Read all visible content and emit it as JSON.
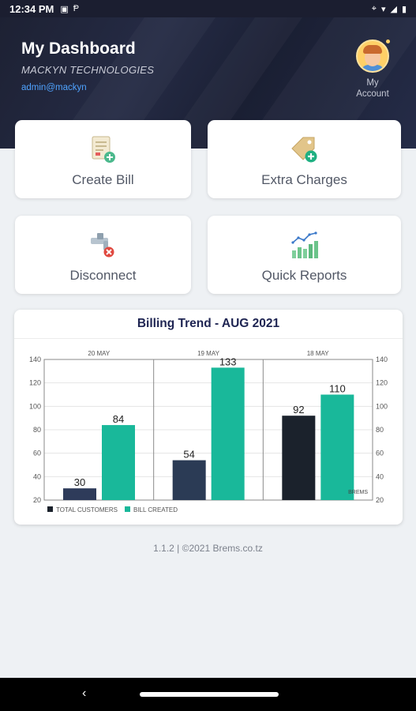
{
  "status": {
    "time": "12:34 PM"
  },
  "header": {
    "title": "My Dashboard",
    "company": "MACKYN TECHNOLOGIES",
    "email": "admin@mackyn",
    "account_label_1": "My",
    "account_label_2": "Account"
  },
  "tiles": {
    "create_bill": "Create Bill",
    "extra_charges": "Extra Charges",
    "disconnect": "Disconnect",
    "quick_reports": "Quick Reports"
  },
  "chart_data": {
    "type": "bar",
    "title": "Billing Trend - AUG 2021",
    "categories": [
      "20 MAY",
      "19 MAY",
      "18 MAY"
    ],
    "series": [
      {
        "name": "TOTAL CUSTOMERS",
        "values": [
          30,
          54,
          92
        ],
        "colors": [
          "#2e3b5a",
          "#2b3b55",
          "#1b222c"
        ]
      },
      {
        "name": "BILL CREATED",
        "values": [
          84,
          133,
          110
        ],
        "color": "#19b89a"
      }
    ],
    "ylim": [
      20,
      140
    ],
    "yticks": [
      20,
      40,
      60,
      80,
      100,
      120,
      140
    ],
    "note": "BREMS",
    "legend": "bottom-left"
  },
  "footer": {
    "text": "1.1.2 | ©2021 Brems.co.tz"
  },
  "colors": {
    "teal": "#19b89a",
    "navy": "#1e2452",
    "link": "#4fa3ff"
  }
}
